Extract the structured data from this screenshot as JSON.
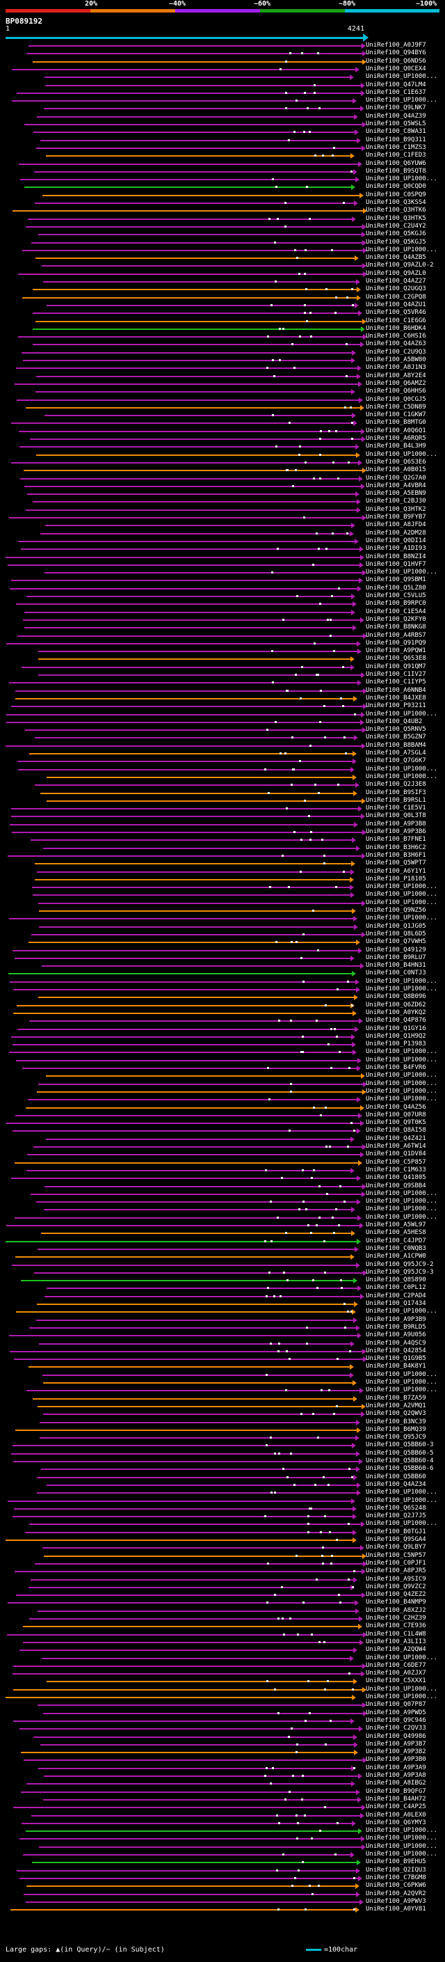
{
  "scale": {
    "labels": [
      "20%",
      "~40%",
      "~60%",
      "~80%",
      "~100%"
    ],
    "colors": [
      "#e0201b",
      "#e8780a",
      "#a020f0",
      "#18a018",
      "#00bcd4"
    ]
  },
  "query": {
    "title": "BP089192",
    "start": "1",
    "end": "4241"
  },
  "legend": {
    "gaps": "Large gaps: ▲(in Query)/~ (in Subject)",
    "scale": "=100char"
  },
  "hits": [
    "UniRef100_A0J9F7",
    "UniRef100_Q94BY6",
    "UniRef100_Q6NDS6",
    "UniRef100_Q0CEX4",
    "UniRef100_UP1000...",
    "UniRef100_Q47LM4",
    "UniRef100_C1E637",
    "UniRef100_UP1000...",
    "UniRef100_Q9LNK7",
    "UniRef100_Q4AZ39",
    "UniRef100_Q5WSL5",
    "UniRef100_C8WA31",
    "UniRef100_B9Q311",
    "UniRef100_C1MZS3",
    "UniRef100_C1FED3",
    "UniRef100_Q6YUW6",
    "UniRef100_B9SQT8",
    "UniRef100_UP1000...",
    "UniRef100_Q0CQD0",
    "UniRef100_C0SPQ9",
    "UniRef100_Q3KSS4",
    "UniRef100_Q3HTK6",
    "UniRef100_Q3HTK5",
    "UniRef100_C2U4Y2",
    "UniRef100_Q5KGJ6",
    "UniRef100_Q5KGJ5",
    "UniRef100_UP1000...",
    "UniRef100_Q4AZB5",
    "UniRef100_Q9AZL0-2",
    "UniRef100_Q9AZL0",
    "UniRef100_Q4AZ27",
    "UniRef100_Q2UGQ3",
    "UniRef100_C2GPQ8",
    "UniRef100_Q4AZU1",
    "UniRef100_Q5VR46",
    "UniRef100_C1E6G6",
    "UniRef100_B6HDK4",
    "UniRef100_C6HSI6",
    "UniRef100_Q4AZ63",
    "UniRef100_C2U9Q3",
    "UniRef100_A5BW80",
    "UniRef100_A8J1N3",
    "UniRef100_A8Y2E4",
    "UniRef100_Q6AMZ2",
    "UniRef100_Q6HHS6",
    "UniRef100_Q0CGJ5",
    "UniRef100_C5DN89",
    "UniRef100_C1GKW7",
    "UniRef100_B8MTG0",
    "UniRef100_A0Q6Q1",
    "UniRef100_A6RQR5",
    "UniRef100_B4L3H9",
    "UniRef100_UP1000...",
    "UniRef100_Q6S3E6",
    "UniRef100_A0B015",
    "UniRef100_Q2G7A0",
    "UniRef100_A4VBR4",
    "UniRef100_A5EBN9",
    "UniRef100_C2BJ30",
    "UniRef100_Q3HTK2",
    "UniRef100_B9FYB7",
    "UniRef100_A8JFD4",
    "UniRef100_A2DM28",
    "UniRef100_Q0DI14",
    "UniRef100_A1DI93",
    "UniRef100_B8NZI4",
    "UniRef100_Q1HVF7",
    "UniRef100_UP1000...",
    "UniRef100_Q9SBM1",
    "UniRef100_Q5LZ80",
    "UniRef100_C5VLU5",
    "UniRef100_B9RPC0",
    "UniRef100_C1E5A4",
    "UniRef100_Q2KFY0",
    "UniRef100_B8NKG8",
    "UniRef100_A4RBS7",
    "UniRef100_Q91PQ9",
    "UniRef100_A9PQW1",
    "UniRef100_Q6S3E8",
    "UniRef100_Q91QM7",
    "UniRef100_C1IV27",
    "UniRef100_C1IYP5",
    "UniRef100_A6NNB4",
    "UniRef100_B4JXE8",
    "UniRef100_P93211",
    "UniRef100_UP1000...",
    "UniRef100_Q4UB2",
    "UniRef100_Q5RNV5",
    "UniRef100_B5GZN7",
    "UniRef100_B8BAM4",
    "UniRef100_A7SGL4",
    "UniRef100_Q7G6K7",
    "UniRef100_UP1000...",
    "UniRef100_UP1000...",
    "UniRef100_Q2J3E8",
    "UniRef100_B9SIF3",
    "UniRef100_B9RSL1",
    "UniRef100_C1E5V1",
    "UniRef100_Q0L3T8",
    "UniRef100_A9P3B8",
    "UniRef100_A9P3B6",
    "UniRef100_B7FNE1",
    "UniRef100_B3H6C2",
    "UniRef100_B3H6F1",
    "UniRef100_Q5WPT7",
    "UniRef100_A6Y1Y1",
    "UniRef100_P18105",
    "UniRef100_UP1000...",
    "UniRef100_UP1000...",
    "UniRef100_UP1000...",
    "UniRef100_Q9NZ56",
    "UniRef100_UP1000...",
    "UniRef100_Q1JG05",
    "UniRef100_Q8L6D5",
    "UniRef100_Q7VWH5",
    "UniRef100_Q49129",
    "UniRef100_B9RLU7",
    "UniRef100_B4HN31",
    "UniRef100_C0NTJ3",
    "UniRef100_UP1000...",
    "UniRef100_UP1000...",
    "UniRef100_Q8B096",
    "UniRef100_Q6ZD62",
    "UniRef100_A0YKQ2",
    "UniRef100_Q4P876",
    "UniRef100_Q1GY16",
    "UniRef100_Q1H9Q2",
    "UniRef100_P13983",
    "UniRef100_UP1000...",
    "UniRef100_UP1000...",
    "UniRef100_B4FVR6",
    "UniRef100_UP1000...",
    "UniRef100_UP1000...",
    "UniRef100_UP1000...",
    "UniRef100_UP1000...",
    "UniRef100_Q4AZ56",
    "UniRef100_Q07UR8",
    "UniRef100_Q9T0K5",
    "UniRef100_Q8AI58",
    "UniRef100_Q4Z421",
    "UniRef100_A6TW14",
    "UniRef100_Q1DV84",
    "UniRef100_C5P857",
    "UniRef100_C1M633",
    "UniRef100_Q41805",
    "UniRef100_Q9SBB4",
    "UniRef100_UP1000...",
    "UniRef100_UP1000...",
    "UniRef100_UP1000...",
    "UniRef100_UP1000...",
    "UniRef100_A5WL97",
    "UniRef100_A5HES8",
    "UniRef100_C4JPD7",
    "UniRef100_C0NQB3",
    "UniRef100_A1CPW0",
    "UniRef100_Q95JC9-2",
    "UniRef100_Q95JC9-3",
    "UniRef100_Q8S890",
    "UniRef100_C0PL12",
    "UniRef100_C2PAD4",
    "UniRef100_Q17434",
    "UniRef100_UP1000...",
    "UniRef100_A9P3B9",
    "UniRef100_B9RLD5",
    "UniRef100_A9U056",
    "UniRef100_A4QSC9",
    "UniRef100_Q42854",
    "UniRef100_Q1G9B5",
    "UniRef100_B4K8Y1",
    "UniRef100_UP1000...",
    "UniRef100_UP1000...",
    "UniRef100_UP1000...",
    "UniRef100_B7ZA59",
    "UniRef100_A2VMQ1",
    "UniRef100_Q2QWV3",
    "UniRef100_B3NC39",
    "UniRef100_B6MQ39",
    "UniRef100_Q95JC9",
    "UniRef100_Q5BB60-3",
    "UniRef100_Q5BB60-5",
    "UniRef100_Q5BB60-4",
    "UniRef100_Q5BB60-6",
    "UniRef100_Q5BB60",
    "UniRef100_Q4AZ34",
    "UniRef100_UP1000...",
    "UniRef100_UP1000...",
    "UniRef100_Q6S248",
    "UniRef100_Q2J7J5",
    "UniRef100_UP1000...",
    "UniRef100_B0TGJ1",
    "UniRef100_Q9SGA4",
    "UniRef100_Q9LBY7",
    "UniRef100_C5NP57",
    "UniRef100_C0PJF1",
    "UniRef100_A8PJR5",
    "UniRef100_A9SIC9",
    "UniRef100_Q9VZC2",
    "UniRef100_Q4ZEZ2",
    "UniRef100_B4NMP9",
    "UniRef100_A8XZJ2",
    "UniRef100_C2HZ39",
    "UniRef100_C7E936",
    "UniRef100_C1L4W8",
    "UniRef100_A3LII3",
    "UniRef100_A2QQW4",
    "UniRef100_UP1000...",
    "UniRef100_C6DE77",
    "UniRef100_A0ZJX7",
    "UniRef100_C5XXX1",
    "UniRef100_UP1000...",
    "UniRef100_UP1000...",
    "UniRef100_Q07P87",
    "UniRef100_A9PWD5",
    "UniRef100_Q9C946",
    "UniRef100_C2QV33",
    "UniRef100_Q49986",
    "UniRef100_A9P3B7",
    "UniRef100_A9P3B2",
    "UniRef100_A9P3B0",
    "UniRef100_A9P3A9",
    "UniRef100_A9P3A8",
    "UniRef100_A8IBG2",
    "UniRef100_B9QFG7",
    "UniRef100_B4AH72",
    "UniRef100_C4AP25",
    "UniRef100_A0LEX0",
    "UniRef100_Q6YMY3",
    "UniRef100_UP1000...",
    "UniRef100_UP1000...",
    "UniRef100_UP1000...",
    "UniRef100_UP1000...",
    "UniRef100_B9EHU5",
    "UniRef100_Q2IQU3",
    "UniRef100_C7BGM8",
    "UniRef100_C6PKW6",
    "UniRef100_A2QVR2",
    "UniRef100_A9PWV3",
    "UniRef100_A0YV81"
  ]
}
